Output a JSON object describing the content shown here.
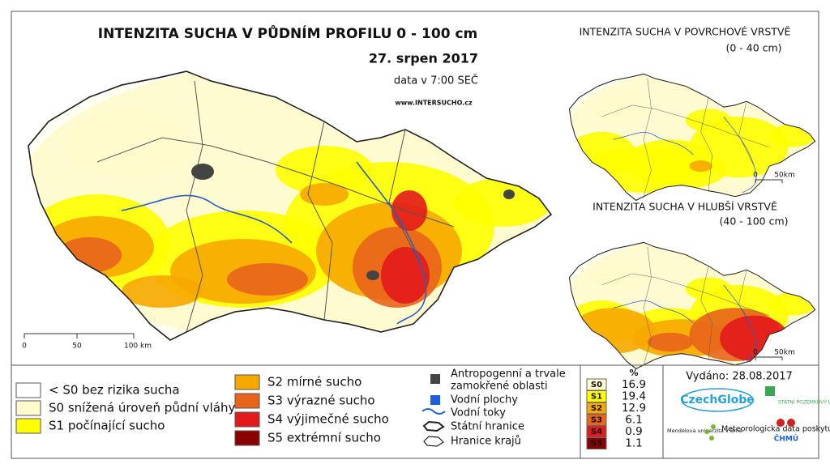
{
  "main": {
    "title": "INTENZITA SUCHA V PŮDNÍM PROFILU 0 - 100 cm",
    "date": "27. srpen 2017",
    "time": "data v 7:00 SEČ",
    "url": "www.INTERSUCHO.cz",
    "scale": [
      "0",
      "50",
      "100 km"
    ]
  },
  "inset_surface": {
    "title": "INTENZITA SUCHA V POVRCHOVÉ VRSTVĚ",
    "subtitle": "(0 - 40 cm)",
    "scale": [
      "0",
      "50km"
    ]
  },
  "inset_deep": {
    "title": "INTENZITA SUCHA V HLUBŠÍ VRSTVĚ",
    "subtitle": "(40 - 100 cm)",
    "scale": [
      "0",
      "50km"
    ]
  },
  "legend": {
    "classes": [
      {
        "label": "< S0 bez rizika sucha",
        "color": "#ffffff"
      },
      {
        "label": "S0 snížená úroveň půdní vláhy",
        "color": "#fffbcc"
      },
      {
        "label": "S1 počínající sucho",
        "color": "#ffff00"
      },
      {
        "label": "S2 mírné sucho",
        "color": "#f7a800"
      },
      {
        "label": "S3 výrazné sucho",
        "color": "#e8641b"
      },
      {
        "label": "S4 výjimečné sucho",
        "color": "#e31a1c"
      },
      {
        "label": "S5 extrémní sucho",
        "color": "#8b0000"
      }
    ],
    "symbols": [
      {
        "lines": [
          "Antropogenní a trvale",
          "zamokřené oblasti"
        ]
      },
      {
        "lines": [
          "Vodní plochy"
        ]
      },
      {
        "lines": [
          "Vodní toky"
        ]
      },
      {
        "lines": [
          "Státní hranice"
        ]
      },
      {
        "lines": [
          "Hranice krajů"
        ]
      }
    ]
  },
  "stats": {
    "header": "%",
    "rows": [
      {
        "code": "S0",
        "value": 16.9
      },
      {
        "code": "S1",
        "value": 19.4
      },
      {
        "code": "S2",
        "value": 12.9
      },
      {
        "code": "S3",
        "value": 6.1
      },
      {
        "code": "S4",
        "value": 0.9
      },
      {
        "code": "S5",
        "value": 1.1
      }
    ]
  },
  "footer": {
    "issued": "Vydáno: 28.08.2017",
    "czechglobe": "CzechGlobe",
    "mendelu": "Mendelova univerzita v Brně",
    "spu": "STÁTNÍ POZEMKOVÝ ÚŘAD",
    "meteo": "Meteorologická data poskytuje:",
    "chmu": "ČHMÚ"
  }
}
